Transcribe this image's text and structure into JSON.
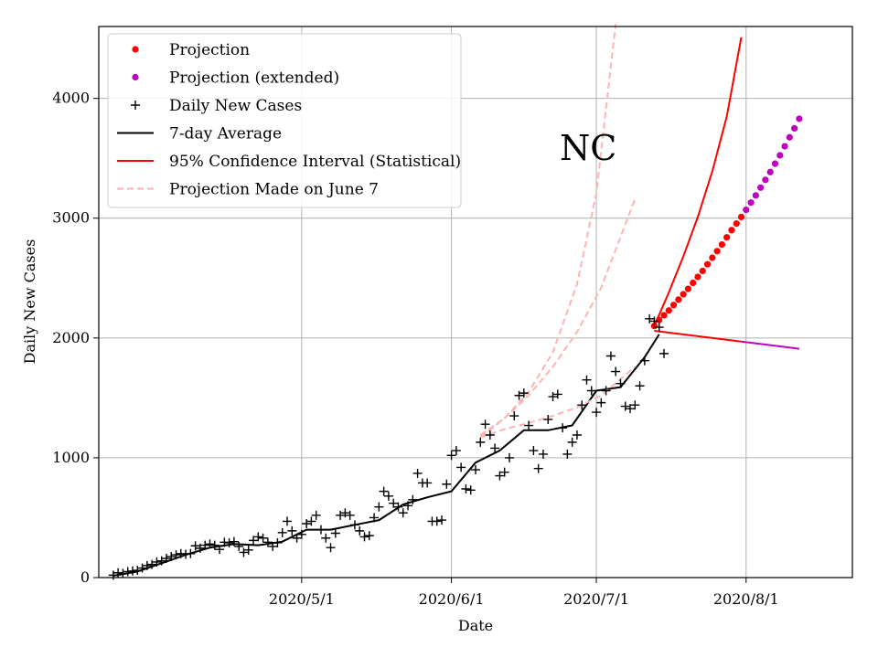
{
  "chart_data": {
    "type": "line",
    "title": "",
    "annotation": "NC",
    "xlabel": "Date",
    "ylabel": "Daily New Cases",
    "x_axis": {
      "range": [
        "2020-03-20",
        "2020-08-23"
      ],
      "ticks": [
        {
          "date": "2020-05-01",
          "label": "2020/5/1"
        },
        {
          "date": "2020-06-01",
          "label": "2020/6/1"
        },
        {
          "date": "2020-07-01",
          "label": "2020/7/1"
        },
        {
          "date": "2020-08-01",
          "label": "2020/8/1"
        }
      ]
    },
    "y_axis": {
      "range": [
        0,
        4600
      ],
      "ticks": [
        {
          "value": 0,
          "label": "0"
        },
        {
          "value": 1000,
          "label": "1000"
        },
        {
          "value": 2000,
          "label": "2000"
        },
        {
          "value": 3000,
          "label": "3000"
        },
        {
          "value": 4000,
          "label": "4000"
        }
      ]
    },
    "grid": true,
    "legend_position": "top-left",
    "series": [
      {
        "name": "Projection",
        "kind": "dots",
        "color": "#ff0000",
        "points": [
          [
            "2020-07-13",
            2100
          ],
          [
            "2020-07-14",
            2150
          ],
          [
            "2020-07-15",
            2190
          ],
          [
            "2020-07-16",
            2230
          ],
          [
            "2020-07-17",
            2275
          ],
          [
            "2020-07-18",
            2320
          ],
          [
            "2020-07-19",
            2365
          ],
          [
            "2020-07-20",
            2410
          ],
          [
            "2020-07-21",
            2460
          ],
          [
            "2020-07-22",
            2510
          ],
          [
            "2020-07-23",
            2560
          ],
          [
            "2020-07-24",
            2615
          ],
          [
            "2020-07-25",
            2670
          ],
          [
            "2020-07-26",
            2725
          ],
          [
            "2020-07-27",
            2780
          ],
          [
            "2020-07-28",
            2840
          ],
          [
            "2020-07-29",
            2900
          ],
          [
            "2020-07-30",
            2955
          ],
          [
            "2020-07-31",
            3010
          ]
        ]
      },
      {
        "name": "Projection (extended)",
        "kind": "dots",
        "color": "#bf00bf",
        "points": [
          [
            "2020-08-01",
            3070
          ],
          [
            "2020-08-02",
            3130
          ],
          [
            "2020-08-03",
            3190
          ],
          [
            "2020-08-04",
            3255
          ],
          [
            "2020-08-05",
            3320
          ],
          [
            "2020-08-06",
            3385
          ],
          [
            "2020-08-07",
            3455
          ],
          [
            "2020-08-08",
            3525
          ],
          [
            "2020-08-09",
            3600
          ],
          [
            "2020-08-10",
            3675
          ],
          [
            "2020-08-11",
            3750
          ],
          [
            "2020-08-12",
            3830
          ]
        ]
      },
      {
        "name": "Daily New Cases",
        "kind": "plus",
        "color": "#000000",
        "points": [
          [
            "2020-03-23",
            20
          ],
          [
            "2020-03-24",
            40
          ],
          [
            "2020-03-25",
            35
          ],
          [
            "2020-03-26",
            50
          ],
          [
            "2020-03-27",
            55
          ],
          [
            "2020-03-28",
            60
          ],
          [
            "2020-03-29",
            80
          ],
          [
            "2020-03-30",
            100
          ],
          [
            "2020-03-31",
            110
          ],
          [
            "2020-04-01",
            130
          ],
          [
            "2020-04-02",
            140
          ],
          [
            "2020-04-03",
            160
          ],
          [
            "2020-04-04",
            175
          ],
          [
            "2020-04-05",
            190
          ],
          [
            "2020-04-06",
            200
          ],
          [
            "2020-04-07",
            195
          ],
          [
            "2020-04-08",
            200
          ],
          [
            "2020-04-09",
            265
          ],
          [
            "2020-04-10",
            245
          ],
          [
            "2020-04-11",
            270
          ],
          [
            "2020-04-12",
            280
          ],
          [
            "2020-04-13",
            270
          ],
          [
            "2020-04-14",
            235
          ],
          [
            "2020-04-15",
            295
          ],
          [
            "2020-04-16",
            290
          ],
          [
            "2020-04-17",
            300
          ],
          [
            "2020-04-18",
            260
          ],
          [
            "2020-04-19",
            210
          ],
          [
            "2020-04-20",
            230
          ],
          [
            "2020-04-21",
            310
          ],
          [
            "2020-04-22",
            340
          ],
          [
            "2020-04-23",
            330
          ],
          [
            "2020-04-24",
            295
          ],
          [
            "2020-04-25",
            260
          ],
          [
            "2020-04-26",
            290
          ],
          [
            "2020-04-27",
            375
          ],
          [
            "2020-04-28",
            470
          ],
          [
            "2020-04-29",
            390
          ],
          [
            "2020-04-30",
            330
          ],
          [
            "2020-05-01",
            360
          ],
          [
            "2020-05-02",
            450
          ],
          [
            "2020-05-03",
            470
          ],
          [
            "2020-05-04",
            520
          ],
          [
            "2020-05-05",
            400
          ],
          [
            "2020-05-06",
            330
          ],
          [
            "2020-05-07",
            250
          ],
          [
            "2020-05-08",
            370
          ],
          [
            "2020-05-09",
            520
          ],
          [
            "2020-05-10",
            540
          ],
          [
            "2020-05-11",
            520
          ],
          [
            "2020-05-12",
            440
          ],
          [
            "2020-05-13",
            390
          ],
          [
            "2020-05-14",
            340
          ],
          [
            "2020-05-15",
            350
          ],
          [
            "2020-05-16",
            500
          ],
          [
            "2020-05-17",
            590
          ],
          [
            "2020-05-18",
            720
          ],
          [
            "2020-05-19",
            680
          ],
          [
            "2020-05-20",
            620
          ],
          [
            "2020-05-21",
            590
          ],
          [
            "2020-05-22",
            540
          ],
          [
            "2020-05-23",
            600
          ],
          [
            "2020-05-24",
            650
          ],
          [
            "2020-05-25",
            870
          ],
          [
            "2020-05-26",
            790
          ],
          [
            "2020-05-27",
            790
          ],
          [
            "2020-05-28",
            470
          ],
          [
            "2020-05-29",
            470
          ],
          [
            "2020-05-30",
            480
          ],
          [
            "2020-05-31",
            780
          ],
          [
            "2020-06-01",
            1020
          ],
          [
            "2020-06-02",
            1060
          ],
          [
            "2020-06-03",
            920
          ],
          [
            "2020-06-04",
            740
          ],
          [
            "2020-06-05",
            730
          ],
          [
            "2020-06-06",
            900
          ],
          [
            "2020-06-07",
            1130
          ],
          [
            "2020-06-08",
            1280
          ],
          [
            "2020-06-09",
            1190
          ],
          [
            "2020-06-10",
            1080
          ],
          [
            "2020-06-11",
            850
          ],
          [
            "2020-06-12",
            880
          ],
          [
            "2020-06-13",
            1000
          ],
          [
            "2020-06-14",
            1350
          ],
          [
            "2020-06-15",
            1520
          ],
          [
            "2020-06-16",
            1540
          ],
          [
            "2020-06-17",
            1270
          ],
          [
            "2020-06-18",
            1060
          ],
          [
            "2020-06-19",
            910
          ],
          [
            "2020-06-20",
            1030
          ],
          [
            "2020-06-21",
            1320
          ],
          [
            "2020-06-22",
            1510
          ],
          [
            "2020-06-23",
            1530
          ],
          [
            "2020-06-24",
            1250
          ],
          [
            "2020-06-25",
            1030
          ],
          [
            "2020-06-26",
            1130
          ],
          [
            "2020-06-27",
            1190
          ],
          [
            "2020-06-28",
            1440
          ],
          [
            "2020-06-29",
            1650
          ],
          [
            "2020-06-30",
            1560
          ],
          [
            "2020-07-01",
            1380
          ],
          [
            "2020-07-02",
            1460
          ],
          [
            "2020-07-03",
            1560
          ],
          [
            "2020-07-04",
            1850
          ],
          [
            "2020-07-05",
            1720
          ],
          [
            "2020-07-06",
            1620
          ],
          [
            "2020-07-07",
            1430
          ],
          [
            "2020-07-08",
            1410
          ],
          [
            "2020-07-09",
            1440
          ],
          [
            "2020-07-10",
            1600
          ],
          [
            "2020-07-11",
            1810
          ],
          [
            "2020-07-12",
            2160
          ],
          [
            "2020-07-13",
            2140
          ],
          [
            "2020-07-14",
            2090
          ],
          [
            "2020-07-15",
            1870
          ]
        ]
      },
      {
        "name": "7-day Average",
        "kind": "line",
        "color": "#000000",
        "dashed": false,
        "points": [
          [
            "2020-03-23",
            15
          ],
          [
            "2020-03-28",
            50
          ],
          [
            "2020-04-02",
            120
          ],
          [
            "2020-04-07",
            190
          ],
          [
            "2020-04-12",
            250
          ],
          [
            "2020-04-17",
            280
          ],
          [
            "2020-04-22",
            270
          ],
          [
            "2020-04-27",
            300
          ],
          [
            "2020-05-02",
            400
          ],
          [
            "2020-05-07",
            400
          ],
          [
            "2020-05-12",
            440
          ],
          [
            "2020-05-17",
            480
          ],
          [
            "2020-05-22",
            610
          ],
          [
            "2020-05-27",
            670
          ],
          [
            "2020-06-01",
            720
          ],
          [
            "2020-06-06",
            960
          ],
          [
            "2020-06-11",
            1060
          ],
          [
            "2020-06-16",
            1230
          ],
          [
            "2020-06-21",
            1230
          ],
          [
            "2020-06-26",
            1270
          ],
          [
            "2020-07-01",
            1560
          ],
          [
            "2020-07-06",
            1590
          ],
          [
            "2020-07-11",
            1840
          ],
          [
            "2020-07-14",
            2030
          ]
        ]
      },
      {
        "name": "95% Confidence Interval (Statistical)",
        "kind": "line",
        "color": "#ff0000",
        "dashed": false,
        "points": [
          [
            "2020-07-13",
            2100
          ],
          [
            "2020-07-16",
            2380
          ],
          [
            "2020-07-19",
            2680
          ],
          [
            "2020-07-22",
            3010
          ],
          [
            "2020-07-25",
            3390
          ],
          [
            "2020-07-28",
            3850
          ],
          [
            "2020-07-31",
            4510
          ]
        ]
      },
      {
        "name": "",
        "kind": "line",
        "color": "#ff0000",
        "dashed": false,
        "points": [
          [
            "2020-07-13",
            2060
          ],
          [
            "2020-07-31",
            1970
          ]
        ]
      },
      {
        "name": "",
        "kind": "line",
        "color": "#bf00bf",
        "dashed": false,
        "points": [
          [
            "2020-07-31",
            1970
          ],
          [
            "2020-08-12",
            1910
          ]
        ]
      },
      {
        "name": "Projection Made on June 7",
        "kind": "line",
        "color": "#ffb3b3",
        "dashed": true,
        "points": [
          [
            "2020-06-07",
            1190
          ],
          [
            "2020-06-12",
            1330
          ],
          [
            "2020-06-17",
            1550
          ],
          [
            "2020-06-22",
            1880
          ],
          [
            "2020-06-27",
            2450
          ],
          [
            "2020-07-01",
            3210
          ],
          [
            "2020-07-05",
            4620
          ]
        ]
      },
      {
        "name": "",
        "kind": "line",
        "color": "#ffb3b3",
        "dashed": true,
        "points": [
          [
            "2020-06-07",
            1170
          ],
          [
            "2020-06-12",
            1330
          ],
          [
            "2020-06-17",
            1520
          ],
          [
            "2020-06-22",
            1760
          ],
          [
            "2020-06-27",
            2050
          ],
          [
            "2020-07-02",
            2420
          ],
          [
            "2020-07-09",
            3160
          ]
        ]
      },
      {
        "name": "",
        "kind": "line",
        "color": "#ffb3b3",
        "dashed": true,
        "points": [
          [
            "2020-06-07",
            1170
          ],
          [
            "2020-06-12",
            1240
          ],
          [
            "2020-06-17",
            1290
          ],
          [
            "2020-06-22",
            1350
          ],
          [
            "2020-06-27",
            1420
          ],
          [
            "2020-07-02",
            1520
          ],
          [
            "2020-07-09",
            1760
          ]
        ]
      }
    ],
    "legend": [
      {
        "label": "Projection",
        "marker": "dot",
        "color": "#ff0000"
      },
      {
        "label": "Projection (extended)",
        "marker": "dot",
        "color": "#bf00bf"
      },
      {
        "label": "Daily New Cases",
        "marker": "plus",
        "color": "#000000"
      },
      {
        "label": "7-day Average",
        "marker": "line",
        "color": "#000000"
      },
      {
        "label": "95% Confidence Interval (Statistical)",
        "marker": "line",
        "color": "#ff0000"
      },
      {
        "label": "Projection Made on June 7",
        "marker": "dash",
        "color": "#ffb3b3"
      }
    ]
  }
}
